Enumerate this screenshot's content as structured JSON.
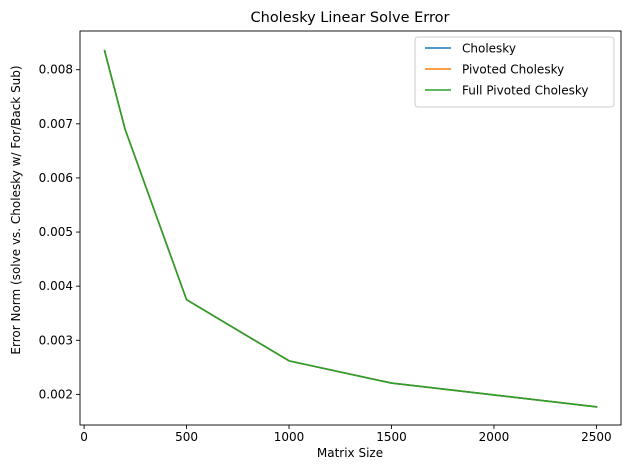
{
  "chart_data": {
    "type": "line",
    "title": "Cholesky Linear Solve Error",
    "xlabel": "Matrix Size",
    "ylabel": "Error Norm (solve vs. Cholesky w/ For/Back Sub)",
    "x": [
      100,
      200,
      500,
      1000,
      1500,
      2000,
      2500
    ],
    "xlim": [
      -20,
      2620
    ],
    "ylim": [
      0.001435,
      0.008715
    ],
    "xticks": [
      0,
      500,
      1000,
      1500,
      2000,
      2500
    ],
    "yticks": [
      0.002,
      0.003,
      0.004,
      0.005,
      0.006,
      0.007,
      0.008
    ],
    "xtick_labels": [
      "0",
      "500",
      "1000",
      "1500",
      "2000",
      "2500"
    ],
    "ytick_labels": [
      "0.002",
      "0.003",
      "0.004",
      "0.005",
      "0.006",
      "0.007",
      "0.008"
    ],
    "grid": false,
    "legend_position": "top-right",
    "series": [
      {
        "name": "Cholesky",
        "color": "#1f77b4",
        "values": [
          0.00835,
          0.0069,
          0.00375,
          0.00262,
          0.00221,
          0.00199,
          0.00177
        ]
      },
      {
        "name": "Pivoted Cholesky",
        "color": "#ff7f0e",
        "values": [
          0.00835,
          0.0069,
          0.00375,
          0.00262,
          0.00221,
          0.00199,
          0.00177
        ]
      },
      {
        "name": "Full Pivoted Cholesky",
        "color": "#2ca02c",
        "values": [
          0.00835,
          0.0069,
          0.00375,
          0.00262,
          0.00221,
          0.00199,
          0.00177
        ]
      }
    ]
  }
}
